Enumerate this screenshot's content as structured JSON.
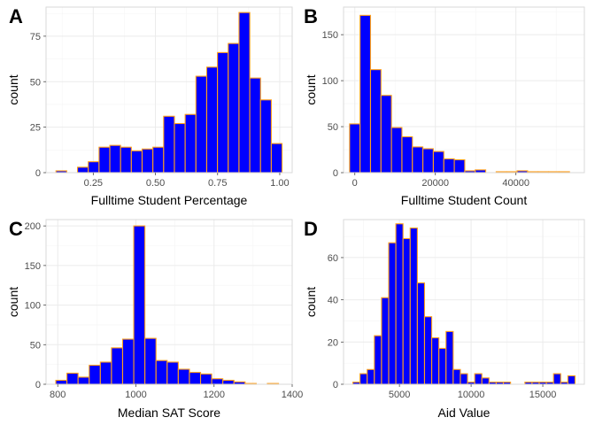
{
  "style": {
    "bar_fill": "#0000ff",
    "bar_stroke": "#ff9f1c",
    "grid_major": "#ebebeb",
    "grid_minor": "#f5f5f5",
    "panel_border": "#d9d9d9",
    "tick_color": "#4d4d4d"
  },
  "chart_data": [
    {
      "panel": "A",
      "type": "histogram",
      "xlabel": "Fulltime Student Percentage",
      "ylabel": "count",
      "xlim": [
        0.06,
        1.05
      ],
      "ylim": [
        0,
        91
      ],
      "xticks": [
        0.25,
        0.5,
        0.75,
        1.0
      ],
      "xtick_labels": [
        "0.25",
        "0.50",
        "0.75",
        "1.00"
      ],
      "yticks": [
        0,
        25,
        50,
        75
      ],
      "bin_width": 0.0433,
      "bin_starts": [
        0.1,
        0.1433,
        0.1866,
        0.2299,
        0.2732,
        0.3165,
        0.3598,
        0.4031,
        0.4464,
        0.4897,
        0.533,
        0.5763,
        0.6196,
        0.6629,
        0.7062,
        0.7495,
        0.7928,
        0.8361,
        0.8794,
        0.9227,
        0.966
      ],
      "counts": [
        1,
        0,
        3,
        6,
        14,
        15,
        14,
        12,
        13,
        14,
        31,
        27,
        32,
        53,
        58,
        66,
        71,
        88,
        52,
        40,
        16
      ]
    },
    {
      "panel": "B",
      "type": "histogram",
      "xlabel": "Fulltime Student Count",
      "ylabel": "count",
      "xlim": [
        -2800,
        57000
      ],
      "ylim": [
        0,
        180
      ],
      "xticks": [
        0,
        20000,
        40000
      ],
      "xtick_labels": [
        "0",
        "20000",
        "40000"
      ],
      "yticks": [
        0,
        50,
        100,
        150
      ],
      "bin_width": 2600,
      "bin_starts": [
        -1300,
        1300,
        3900,
        6500,
        9100,
        11700,
        14300,
        16900,
        19500,
        22100,
        24700,
        27300,
        29900,
        32500,
        35100,
        37700,
        40300,
        42900,
        45500,
        48100,
        50700
      ],
      "counts": [
        53,
        171,
        112,
        84,
        49,
        39,
        28,
        26,
        23,
        15,
        14,
        2,
        3,
        0,
        1,
        1,
        2,
        1,
        1,
        1,
        1
      ]
    },
    {
      "panel": "C",
      "type": "histogram",
      "xlabel": "Median SAT Score",
      "ylabel": "count",
      "xlim": [
        770,
        1400
      ],
      "ylim": [
        0,
        208
      ],
      "xticks": [
        800,
        1000,
        1200,
        1400
      ],
      "xtick_labels": [
        "800",
        "1000",
        "1200",
        "1400"
      ],
      "yticks": [
        0,
        50,
        100,
        150,
        200
      ],
      "bin_width": 28.5,
      "bin_starts": [
        795,
        823.5,
        852,
        880.5,
        909,
        937.5,
        966,
        994.5,
        1023,
        1051.5,
        1080,
        1108.5,
        1137,
        1165.5,
        1194,
        1222.5,
        1251,
        1279.5,
        1308,
        1336.5
      ],
      "counts": [
        5,
        14,
        9,
        24,
        28,
        46,
        57,
        200,
        58,
        30,
        28,
        19,
        15,
        13,
        7,
        5,
        3,
        1,
        0,
        1
      ]
    },
    {
      "panel": "D",
      "type": "histogram",
      "xlabel": "Aid Value",
      "ylabel": "count",
      "xlim": [
        1100,
        17900
      ],
      "ylim": [
        0,
        78
      ],
      "xticks": [
        5000,
        10000,
        15000
      ],
      "xtick_labels": [
        "5000",
        "10000",
        "15000"
      ],
      "yticks": [
        0,
        20,
        40,
        60
      ],
      "bin_width": 500,
      "bin_starts": [
        1750,
        2250,
        2750,
        3250,
        3750,
        4250,
        4750,
        5250,
        5750,
        6250,
        6750,
        7250,
        7750,
        8250,
        8750,
        9250,
        9750,
        10250,
        10750,
        11250,
        11750,
        12250,
        12750,
        13250,
        13750,
        14250,
        14750,
        15250,
        15750,
        16250,
        16750
      ],
      "counts": [
        1,
        5,
        7,
        23,
        41,
        67,
        76,
        69,
        74,
        48,
        32,
        22,
        17,
        25,
        7,
        5,
        1,
        5,
        3,
        1,
        1,
        1,
        0,
        0,
        1,
        1,
        1,
        1,
        5,
        1,
        4
      ]
    }
  ]
}
